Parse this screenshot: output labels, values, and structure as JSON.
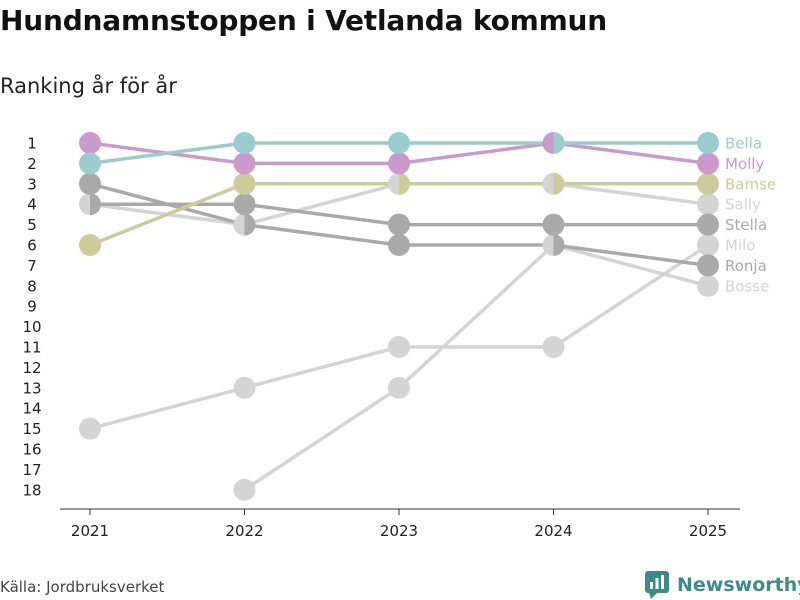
{
  "header": {
    "title": "Hundnamnstoppen i Vetlanda kommun",
    "subtitle": "Ranking år för år"
  },
  "footer": {
    "source": "Källa: Jordbruksverket",
    "brand": "Newsworthy",
    "brand_icon": "newsworthy-logo-icon"
  },
  "chart_data": {
    "type": "line",
    "title": "Hundnamnstoppen i Vetlanda kommun",
    "subtitle": "Ranking år för år",
    "xlabel": "",
    "ylabel": "",
    "categories": [
      "2021",
      "2022",
      "2023",
      "2024",
      "2025"
    ],
    "y_ticks": [
      "1",
      "2",
      "3",
      "4",
      "5",
      "6",
      "7",
      "8",
      "9",
      "10",
      "11",
      "12",
      "13",
      "14",
      "15",
      "16",
      "17",
      "18"
    ],
    "ylim": [
      18,
      1
    ],
    "y_reversed": true,
    "grid": false,
    "series": [
      {
        "name": "Bosse",
        "color": "#d4d4d4",
        "values": [
          null,
          18,
          13,
          6,
          8
        ]
      },
      {
        "name": "Milo",
        "color": "#d4d4d4",
        "values": [
          15,
          13,
          11,
          11,
          6
        ]
      },
      {
        "name": "Sally",
        "color": "#d4d4d4",
        "values": [
          4,
          5,
          3,
          3,
          4
        ]
      },
      {
        "name": "Ronja",
        "color": "#a9a9a9",
        "values": [
          3,
          5,
          6,
          6,
          7
        ]
      },
      {
        "name": "Stella",
        "color": "#a9a9a9",
        "values": [
          4,
          4,
          5,
          5,
          5
        ]
      },
      {
        "name": "Bamse",
        "color": "#cccc99",
        "values": [
          6,
          3,
          3,
          3,
          3
        ]
      },
      {
        "name": "Molly",
        "color": "#cc99cc",
        "values": [
          1,
          2,
          2,
          1,
          2
        ]
      },
      {
        "name": "Bella",
        "color": "#99cccc",
        "values": [
          2,
          1,
          1,
          1,
          1
        ]
      }
    ],
    "legend_order": [
      "Bella",
      "Molly",
      "Bamse",
      "Sally",
      "Stella",
      "Milo",
      "Ronja",
      "Bosse"
    ]
  }
}
